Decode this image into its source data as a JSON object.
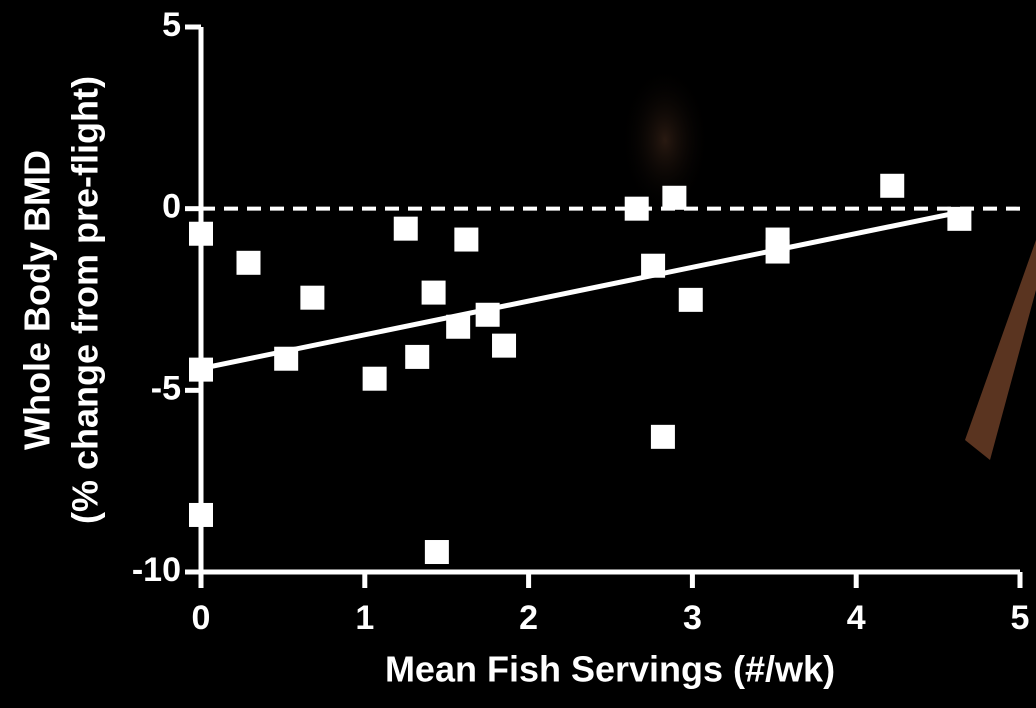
{
  "chart_data": {
    "type": "scatter",
    "xlabel": "Mean Fish Servings (#/wk)",
    "ylabel": [
      "Whole Body BMD",
      "(% change from pre-flight)"
    ],
    "xlim": [
      0,
      5
    ],
    "xticks": [
      0,
      1,
      2,
      3,
      4,
      5
    ],
    "ylim": [
      -10,
      5
    ],
    "yticks": [
      -10,
      -5,
      0,
      5
    ],
    "reference_line": 0,
    "color": "#ffffff",
    "x": [
      0,
      0.29,
      0.52,
      0.68,
      1.06,
      1.25,
      1.32,
      1.42,
      1.57,
      1.62,
      1.75,
      1.85,
      1.44,
      0,
      0,
      2.66,
      2.76,
      2.82,
      2.89,
      2.99,
      3.52,
      3.52,
      4.22,
      4.63
    ],
    "values": [
      -0.69,
      -1.49,
      -4.13,
      -2.45,
      -4.68,
      -0.55,
      -4.08,
      -2.31,
      -3.25,
      -0.85,
      -2.92,
      -3.77,
      -9.45,
      -8.43,
      -4.43,
      0.0,
      -1.57,
      -6.28,
      0.3,
      -2.51,
      -0.85,
      -1.18,
      0.63,
      -0.28
    ],
    "fit": {
      "x": [
        0,
        4.63
      ],
      "values": [
        -4.4,
        -0.1
      ]
    }
  }
}
